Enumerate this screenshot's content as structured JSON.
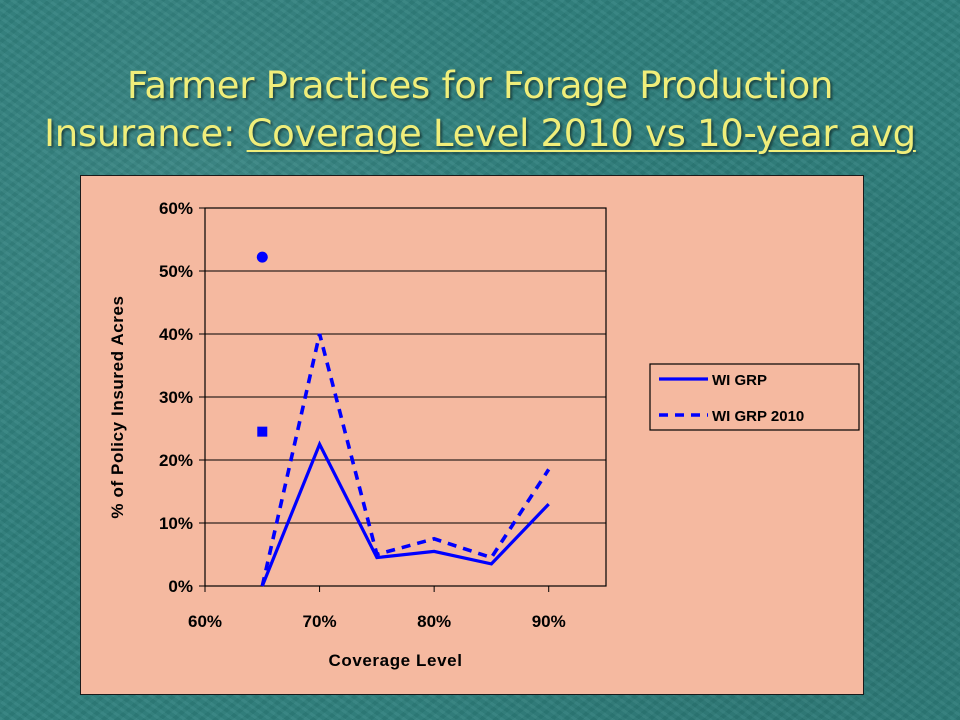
{
  "slide": {
    "title_line1": "Farmer Practices for Forage Production",
    "title_line2_prefix": "Insurance: ",
    "title_line2_underlined": "Coverage Level 2010 vs 10-year avg"
  },
  "colors": {
    "title": "#f0ee7a",
    "background": "#2e7f7c",
    "chart_area": "#f5b9a0",
    "series": "#0000ff"
  },
  "chart_data": {
    "type": "line",
    "title": "",
    "xlabel": "Coverage Level",
    "ylabel": "% of Policy Insured Acres",
    "xlim": [
      60,
      95
    ],
    "ylim": [
      0,
      60
    ],
    "x_ticks": [
      60,
      70,
      80,
      90
    ],
    "x_tick_labels": [
      "60%",
      "70%",
      "80%",
      "90%"
    ],
    "y_ticks": [
      0,
      10,
      20,
      30,
      40,
      50,
      60
    ],
    "y_tick_labels": [
      "0%",
      "10%",
      "20%",
      "30%",
      "40%",
      "50%",
      "60%"
    ],
    "grid": "horizontal",
    "legend_position": "right",
    "series": [
      {
        "name": "WI GRP",
        "style": "solid",
        "x": [
          65,
          70,
          75,
          80,
          85,
          90
        ],
        "y": [
          0,
          22.5,
          4.5,
          5.5,
          3.5,
          13
        ]
      },
      {
        "name": "WI GRP 2010",
        "style": "dashed",
        "x": [
          65,
          70,
          75,
          80,
          85,
          90
        ],
        "y": [
          0,
          40,
          5,
          7.5,
          4.5,
          18.5
        ]
      }
    ],
    "extra_points": [
      {
        "marker": "circle",
        "x": 65,
        "y": 52.2
      },
      {
        "marker": "square",
        "x": 65,
        "y": 24.5
      }
    ]
  }
}
